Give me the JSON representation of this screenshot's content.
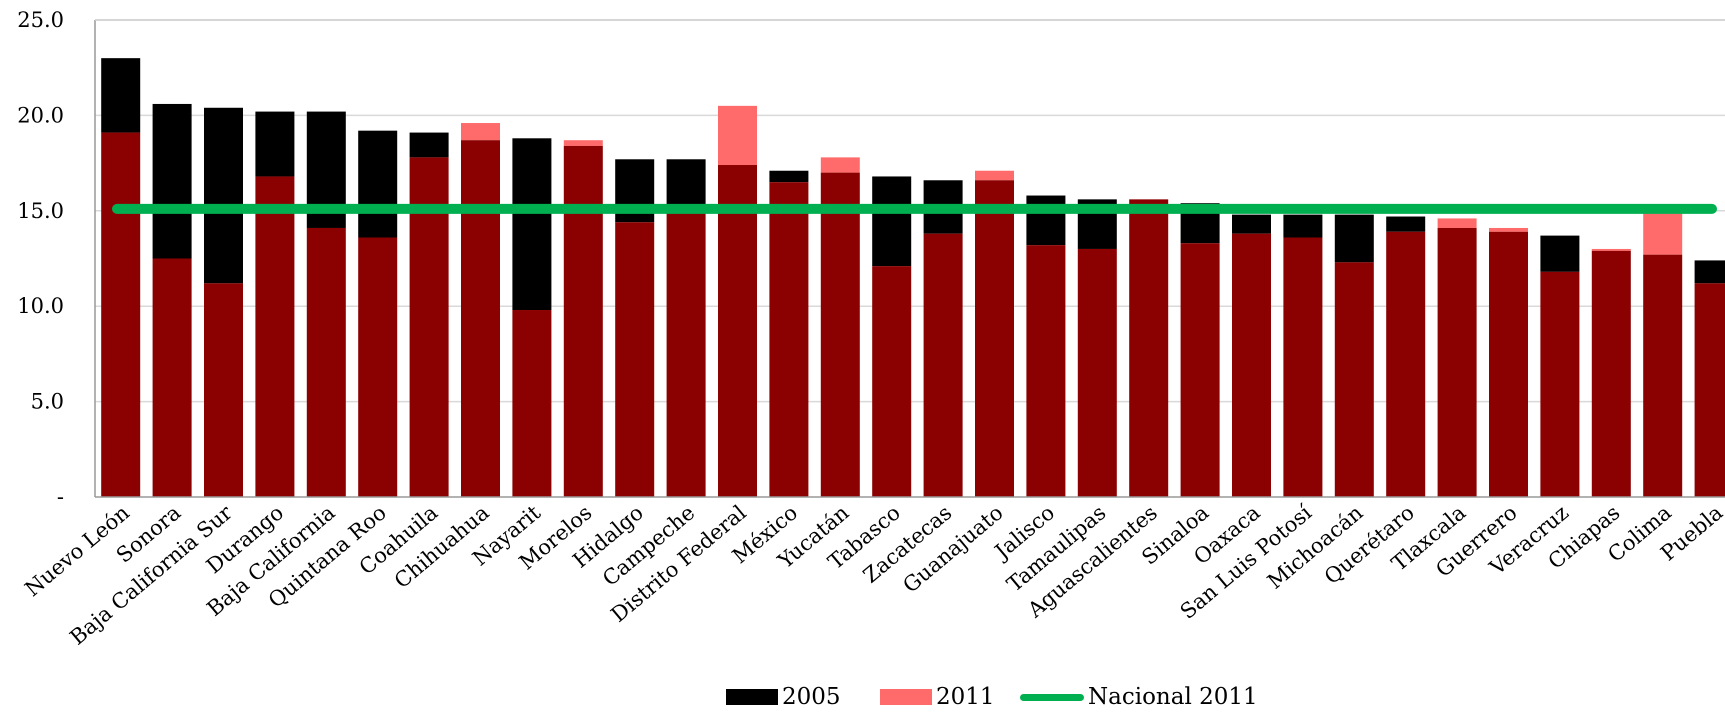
{
  "chart_data": {
    "type": "bar",
    "title": "",
    "xlabel": "",
    "ylabel": "",
    "ylim": [
      0,
      25
    ],
    "y_ticks": [
      {
        "value": 0,
        "label": "-"
      },
      {
        "value": 5,
        "label": "5.0"
      },
      {
        "value": 10,
        "label": "10.0"
      },
      {
        "value": 15,
        "label": "15.0"
      },
      {
        "value": 20,
        "label": "20.0"
      },
      {
        "value": 25,
        "label": "25.0"
      }
    ],
    "grid": true,
    "legend_position": "bottom",
    "categories": [
      "Nuevo León",
      "Sonora",
      "Baja California Sur",
      "Durango",
      "Baja California",
      "Quintana Roo",
      "Coahuila",
      "Chihuahua",
      "Nayarit",
      "Morelos",
      "Hidalgo",
      "Campeche",
      "Distrito Federal",
      "México",
      "Yucatán",
      "Tabasco",
      "Zacatecas",
      "Guanajuato",
      "Jalisco",
      "Tamaulipas",
      "Aguascalientes",
      "Sinaloa",
      "Oaxaca",
      "San Luis Potosí",
      "Michoacán",
      "Querétaro",
      "Tlaxcala",
      "Guerrero",
      "Veracruz",
      "Chiapas",
      "Colima",
      "Puebla"
    ],
    "series": [
      {
        "name": "2005",
        "color": "#000000",
        "values": [
          23.0,
          20.6,
          20.4,
          20.2,
          20.2,
          19.2,
          19.1,
          18.7,
          18.8,
          18.4,
          17.7,
          17.7,
          17.4,
          17.1,
          17.0,
          16.8,
          16.6,
          16.6,
          15.8,
          15.6,
          15.6,
          15.4,
          14.8,
          14.8,
          14.8,
          14.7,
          14.1,
          13.9,
          13.7,
          12.9,
          12.7,
          12.4
        ]
      },
      {
        "name": "2011",
        "color": "#ff6b6b",
        "values": [
          19.1,
          12.5,
          11.2,
          16.8,
          14.1,
          13.6,
          17.8,
          19.6,
          9.8,
          18.7,
          14.4,
          15.0,
          20.5,
          16.5,
          17.8,
          12.1,
          13.8,
          17.1,
          13.2,
          13.0,
          15.6,
          13.3,
          13.8,
          13.6,
          12.3,
          13.9,
          14.6,
          14.1,
          11.8,
          13.0,
          15.0,
          11.2
        ]
      },
      {
        "name": "Nacional 2011",
        "type": "line",
        "color": "#00b050",
        "value": 15.1
      }
    ]
  }
}
